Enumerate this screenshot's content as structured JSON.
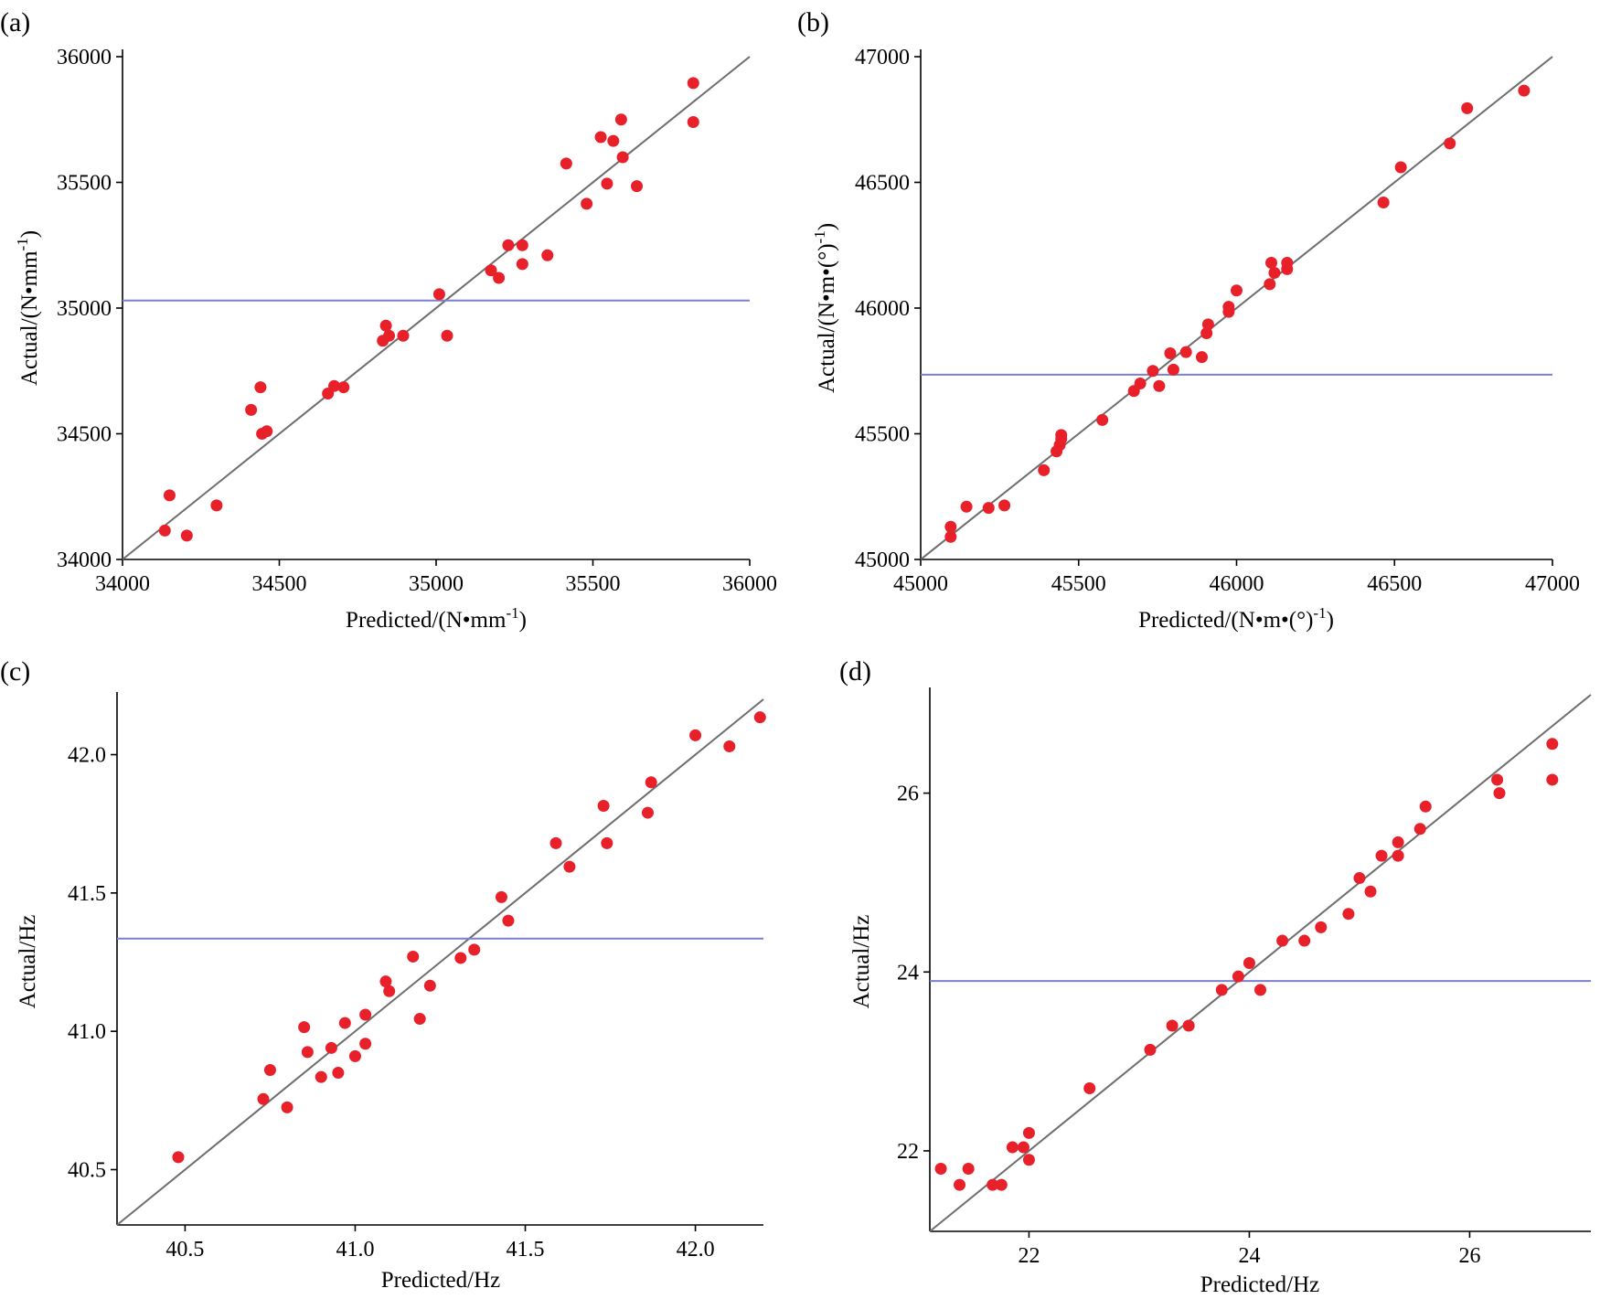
{
  "colors": {
    "points": "#e8202a",
    "fit_line": "#6d6d6d",
    "mean_line": "#7b7fd0",
    "axes": "#000000"
  },
  "chart_data": [
    {
      "type": "scatter",
      "panel": "(a)",
      "xlabel_main": "Predicted/(N•mm",
      "xlabel_sup": "-1",
      "xlabel_tail": ")",
      "ylabel_main": "Actual/(N•mm",
      "ylabel_sup": "-1",
      "ylabel_tail": ")",
      "xlim": [
        34000,
        36000
      ],
      "ylim": [
        34000,
        36000
      ],
      "xticks": [
        34000,
        34500,
        35000,
        35500,
        36000
      ],
      "yticks": [
        34000,
        34500,
        35000,
        35500,
        36000
      ],
      "xtick_labels": [
        "34000",
        "34500",
        "35000",
        "35500",
        "36000"
      ],
      "ytick_labels": [
        "34000",
        "34500",
        "35000",
        "35500",
        "36000"
      ],
      "fit_line": [
        [
          34000,
          34000
        ],
        [
          36000,
          36000
        ]
      ],
      "mean_line_y": 35030,
      "points": [
        [
          34135,
          34115
        ],
        [
          34150,
          34255
        ],
        [
          34205,
          34095
        ],
        [
          34300,
          34215
        ],
        [
          34410,
          34595
        ],
        [
          34440,
          34685
        ],
        [
          34445,
          34500
        ],
        [
          34460,
          34510
        ],
        [
          34655,
          34660
        ],
        [
          34675,
          34690
        ],
        [
          34705,
          34685
        ],
        [
          34830,
          34870
        ],
        [
          34840,
          34930
        ],
        [
          34850,
          34890
        ],
        [
          34895,
          34890
        ],
        [
          35010,
          35055
        ],
        [
          35035,
          34890
        ],
        [
          35175,
          35150
        ],
        [
          35200,
          35120
        ],
        [
          35230,
          35250
        ],
        [
          35275,
          35250
        ],
        [
          35275,
          35175
        ],
        [
          35355,
          35210
        ],
        [
          35415,
          35575
        ],
        [
          35480,
          35415
        ],
        [
          35525,
          35680
        ],
        [
          35545,
          35495
        ],
        [
          35565,
          35665
        ],
        [
          35590,
          35750
        ],
        [
          35595,
          35600
        ],
        [
          35640,
          35485
        ],
        [
          35820,
          35895
        ],
        [
          35820,
          35740
        ]
      ]
    },
    {
      "type": "scatter",
      "panel": "(b)",
      "xlabel_main": "Predicted/(N•m•(°)",
      "xlabel_sup": "-1",
      "xlabel_tail": ")",
      "ylabel_main": "Actual/(N•m•(°)",
      "ylabel_sup": "-1",
      "ylabel_tail": ")",
      "xlim": [
        45000,
        47000
      ],
      "ylim": [
        45000,
        47000
      ],
      "xticks": [
        45000,
        45500,
        46000,
        46500,
        47000
      ],
      "yticks": [
        45000,
        45500,
        46000,
        46500,
        47000
      ],
      "xtick_labels": [
        "45000",
        "45500",
        "46000",
        "46500",
        "47000"
      ],
      "ytick_labels": [
        "45000",
        "45500",
        "46000",
        "46500",
        "47000"
      ],
      "fit_line": [
        [
          45000,
          45000
        ],
        [
          47000,
          47000
        ]
      ],
      "mean_line_y": 45735,
      "points": [
        [
          45095,
          45090
        ],
        [
          45095,
          45130
        ],
        [
          45145,
          45210
        ],
        [
          45215,
          45205
        ],
        [
          45265,
          45215
        ],
        [
          45390,
          45355
        ],
        [
          45430,
          45430
        ],
        [
          45440,
          45455
        ],
        [
          45445,
          45480
        ],
        [
          45445,
          45495
        ],
        [
          45575,
          45555
        ],
        [
          45675,
          45670
        ],
        [
          45695,
          45700
        ],
        [
          45735,
          45750
        ],
        [
          45755,
          45690
        ],
        [
          45790,
          45820
        ],
        [
          45800,
          45755
        ],
        [
          45840,
          45825
        ],
        [
          45890,
          45805
        ],
        [
          45905,
          45900
        ],
        [
          45910,
          45935
        ],
        [
          45975,
          45985
        ],
        [
          45975,
          46005
        ],
        [
          46000,
          46070
        ],
        [
          46105,
          46095
        ],
        [
          46110,
          46180
        ],
        [
          46120,
          46140
        ],
        [
          46160,
          46180
        ],
        [
          46160,
          46155
        ],
        [
          46465,
          46420
        ],
        [
          46520,
          46560
        ],
        [
          46675,
          46655
        ],
        [
          46730,
          46795
        ],
        [
          46910,
          46865
        ]
      ]
    },
    {
      "type": "scatter",
      "panel": "(c)",
      "xlabel_main": "Predicted/Hz",
      "xlabel_sup": "",
      "xlabel_tail": "",
      "ylabel_main": "Actual/Hz",
      "ylabel_sup": "",
      "ylabel_tail": "",
      "xlim": [
        40.3,
        42.2
      ],
      "ylim": [
        40.3,
        42.2
      ],
      "xticks": [
        40.5,
        41.0,
        41.5,
        42.0
      ],
      "yticks": [
        40.5,
        41.0,
        41.5,
        42.0
      ],
      "xtick_labels": [
        "40.5",
        "41.0",
        "41.5",
        "42.0"
      ],
      "ytick_labels": [
        "40.5",
        "41.0",
        "41.5",
        "42.0"
      ],
      "fit_line": [
        [
          40.3,
          40.3
        ],
        [
          42.2,
          42.2
        ]
      ],
      "mean_line_y": 41.335,
      "points": [
        [
          40.48,
          40.545
        ],
        [
          40.73,
          40.755
        ],
        [
          40.75,
          40.86
        ],
        [
          40.8,
          40.725
        ],
        [
          40.85,
          41.015
        ],
        [
          40.86,
          40.925
        ],
        [
          40.9,
          40.835
        ],
        [
          40.93,
          40.94
        ],
        [
          40.95,
          40.85
        ],
        [
          40.97,
          41.03
        ],
        [
          41.0,
          40.91
        ],
        [
          41.03,
          40.955
        ],
        [
          41.03,
          41.06
        ],
        [
          41.09,
          41.18
        ],
        [
          41.1,
          41.145
        ],
        [
          41.17,
          41.27
        ],
        [
          41.19,
          41.045
        ],
        [
          41.22,
          41.165
        ],
        [
          41.31,
          41.265
        ],
        [
          41.35,
          41.295
        ],
        [
          41.43,
          41.485
        ],
        [
          41.45,
          41.4
        ],
        [
          41.59,
          41.68
        ],
        [
          41.63,
          41.595
        ],
        [
          41.73,
          41.815
        ],
        [
          41.74,
          41.68
        ],
        [
          41.86,
          41.79
        ],
        [
          41.87,
          41.9
        ],
        [
          42.0,
          42.07
        ],
        [
          42.1,
          42.03
        ],
        [
          42.19,
          42.135
        ]
      ]
    },
    {
      "type": "scatter",
      "panel": "(d)",
      "xlabel_main": "Predicted/Hz",
      "xlabel_sup": "",
      "xlabel_tail": "",
      "ylabel_main": "Actual/Hz",
      "ylabel_sup": "",
      "ylabel_tail": "",
      "xlim": [
        21.1,
        27.1
      ],
      "ylim": [
        21.1,
        27.1
      ],
      "xticks": [
        22,
        24,
        26
      ],
      "yticks": [
        22,
        24,
        26
      ],
      "xtick_labels": [
        "22",
        "24",
        "26"
      ],
      "ytick_labels": [
        "22",
        "24",
        "26"
      ],
      "fit_line": [
        [
          21.1,
          21.1
        ],
        [
          27.1,
          27.1
        ]
      ],
      "mean_line_y": 23.9,
      "points": [
        [
          21.2,
          21.8
        ],
        [
          21.37,
          21.62
        ],
        [
          21.45,
          21.8
        ],
        [
          21.67,
          21.62
        ],
        [
          21.75,
          21.62
        ],
        [
          21.85,
          22.04
        ],
        [
          21.95,
          22.04
        ],
        [
          22.0,
          21.9
        ],
        [
          22.0,
          22.2
        ],
        [
          22.55,
          22.7
        ],
        [
          23.1,
          23.13
        ],
        [
          23.3,
          23.4
        ],
        [
          23.45,
          23.4
        ],
        [
          23.75,
          23.8
        ],
        [
          23.9,
          23.95
        ],
        [
          24.0,
          24.1
        ],
        [
          24.1,
          23.8
        ],
        [
          24.3,
          24.35
        ],
        [
          24.5,
          24.35
        ],
        [
          24.65,
          24.5
        ],
        [
          24.9,
          24.65
        ],
        [
          25.0,
          25.05
        ],
        [
          25.1,
          24.9
        ],
        [
          25.2,
          25.3
        ],
        [
          25.35,
          25.3
        ],
        [
          25.35,
          25.45
        ],
        [
          25.55,
          25.6
        ],
        [
          25.6,
          25.85
        ],
        [
          26.25,
          26.15
        ],
        [
          26.27,
          26.0
        ],
        [
          26.75,
          26.15
        ],
        [
          26.75,
          26.55
        ]
      ]
    }
  ]
}
